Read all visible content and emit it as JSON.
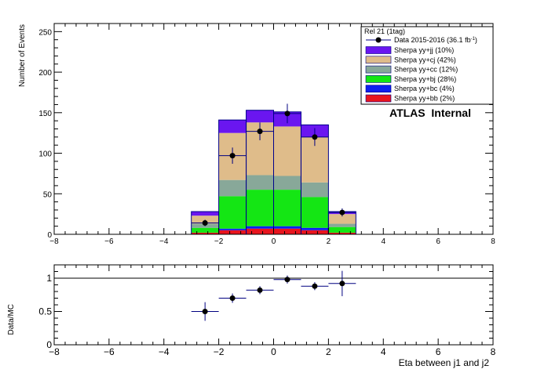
{
  "chart_data": [
    {
      "type": "bar",
      "ylabel": "Number of Events",
      "xlim": [
        -8,
        8
      ],
      "ylim": [
        0,
        260
      ],
      "xticks": [
        -8,
        -6,
        -4,
        -2,
        0,
        2,
        4,
        6,
        8
      ],
      "yticks": [
        0,
        50,
        100,
        150,
        200,
        250
      ],
      "bin_edges": [
        -3,
        -2,
        -1,
        0,
        1,
        2,
        3
      ],
      "legend_header": "Rel 21 (1tag)",
      "annotation": "ATLAS  Internal",
      "data_series": {
        "name": "Data 2015-2016 (36.1 fb⁻¹)",
        "name_prefix": "Data 2015-2016 (36.1 fb",
        "name_sup": "-1",
        "name_suffix": ")",
        "x": [
          -2.5,
          -1.5,
          -0.5,
          0.5,
          1.5,
          2.5
        ],
        "y": [
          14,
          97,
          127,
          149,
          120,
          27
        ],
        "err": [
          4,
          10,
          11,
          12,
          11,
          5
        ]
      },
      "stack": [
        {
          "name": "Sherpa yy+bb (2%)",
          "color": "#e8141e",
          "values": [
            2,
            5,
            7,
            7,
            5,
            2
          ]
        },
        {
          "name": "Sherpa yy+bc (4%)",
          "color": "#0d1ff0",
          "values": [
            0,
            2,
            3,
            3,
            3,
            0
          ]
        },
        {
          "name": "Sherpa yy+bj (28%)",
          "color": "#14e614",
          "values": [
            6,
            40,
            45,
            45,
            38,
            7
          ]
        },
        {
          "name": "Sherpa yy+cc (12%)",
          "color": "#88a899",
          "values": [
            5,
            20,
            18,
            17,
            18,
            4
          ]
        },
        {
          "name": "Sherpa yy+cj (42%)",
          "color": "#dfbc8a",
          "values": [
            10,
            58,
            65,
            61,
            56,
            12
          ]
        },
        {
          "name": "Sherpa yy+jj (10%)",
          "color": "#6a16f0",
          "values": [
            5,
            16,
            15,
            18,
            15,
            3
          ]
        }
      ]
    },
    {
      "type": "scatter",
      "xlabel": "Eta between j1 and j2",
      "ylabel": "Data/MC",
      "xlim": [
        -8,
        8
      ],
      "ylim": [
        0,
        1.2
      ],
      "xticks": [
        -8,
        -6,
        -4,
        -2,
        0,
        2,
        4,
        6,
        8
      ],
      "yticks": [
        0,
        0.5,
        1
      ],
      "ref_line": 1,
      "x": [
        -2.5,
        -1.5,
        -0.5,
        0.5,
        1.5,
        2.5
      ],
      "y": [
        0.5,
        0.7,
        0.82,
        0.98,
        0.88,
        0.92
      ],
      "err": [
        0.14,
        0.07,
        0.06,
        0.06,
        0.06,
        0.19
      ]
    }
  ]
}
